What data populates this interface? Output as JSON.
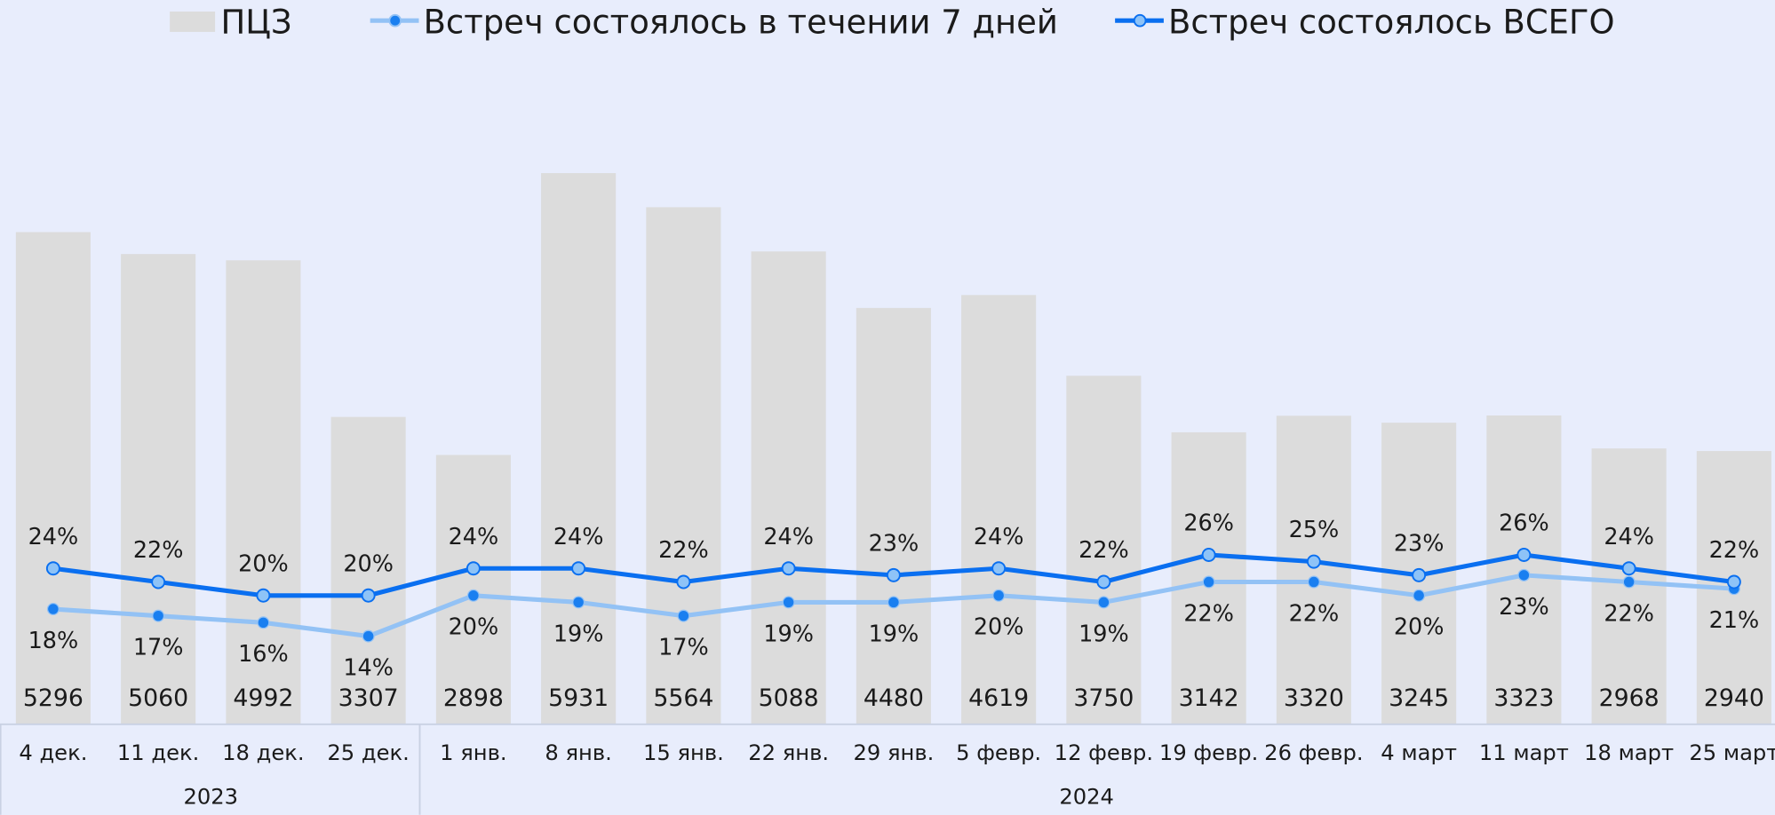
{
  "chart_data": {
    "type": "bar-line",
    "categories": [
      "4 дек.",
      "11 дек.",
      "18 дек.",
      "25 дек.",
      "1 янв.",
      "8 янв.",
      "15 янв.",
      "22 янв.",
      "29 янв.",
      "5 февр.",
      "12 февр.",
      "19 февр.",
      "26 февр.",
      "4 март",
      "11 март",
      "18 март",
      "25 март"
    ],
    "groups": [
      {
        "label": "2023",
        "count": 4
      },
      {
        "label": "2024",
        "count": 13
      }
    ],
    "legend": "top",
    "ylim": [
      0,
      7000
    ],
    "y2lim": [
      1,
      97
    ],
    "series": [
      {
        "name": "ПЦЗ",
        "type": "bar",
        "color": "#dcdcdc",
        "values": [
          5296,
          5060,
          4992,
          3307,
          2898,
          5931,
          5564,
          5088,
          4480,
          4619,
          3750,
          3142,
          3320,
          3245,
          3323,
          2968,
          2940
        ]
      },
      {
        "name": "Встреч состоялось в течении 7 дней",
        "type": "line",
        "axis": "y2",
        "color": "#93c2f5",
        "marker_color": "#1a7ff0",
        "label_position": "below",
        "values": [
          18,
          17,
          16,
          14,
          20,
          19,
          17,
          19,
          19,
          20,
          19,
          22,
          22,
          20,
          23,
          22,
          21
        ],
        "value_labels": [
          "18%",
          "17%",
          "16%",
          "14%",
          "20%",
          "19%",
          "17%",
          "19%",
          "19%",
          "20%",
          "19%",
          "22%",
          "22%",
          "20%",
          "23%",
          "22%",
          "21%"
        ]
      },
      {
        "name": "Встреч состоялось ВСЕГО",
        "type": "line",
        "axis": "y2",
        "color": "#0a6ff0",
        "marker_color": "#8ec3f7",
        "label_position": "above",
        "values": [
          24,
          22,
          20,
          20,
          24,
          24,
          22,
          24,
          23,
          24,
          22,
          26,
          25,
          23,
          26,
          24,
          22
        ],
        "value_labels": [
          "24%",
          "22%",
          "20%",
          "20%",
          "24%",
          "24%",
          "22%",
          "24%",
          "23%",
          "24%",
          "22%",
          "26%",
          "25%",
          "23%",
          "26%",
          "24%",
          "22%"
        ]
      }
    ]
  }
}
